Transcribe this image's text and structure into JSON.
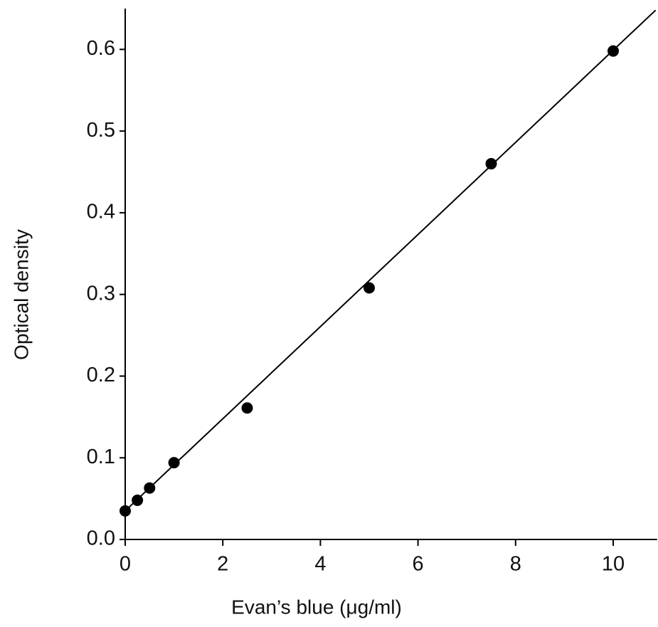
{
  "chart_data": {
    "type": "scatter",
    "x_label": "Evan’s blue (μg/ml)",
    "y_label": "Optical density",
    "x": [
      0,
      0.25,
      0.5,
      1,
      2.5,
      5,
      7.5,
      10
    ],
    "values": [
      0.035,
      0.048,
      0.063,
      0.094,
      0.161,
      0.308,
      0.46,
      0.598
    ],
    "color": "#000000",
    "fit_line": {
      "x": [
        0,
        10.87
      ],
      "values": [
        0.035,
        0.648
      ]
    },
    "xlim": [
      0,
      10.9
    ],
    "ylim": [
      0,
      0.65
    ],
    "xticks": [
      0,
      2,
      4,
      6,
      8,
      10
    ],
    "yticks": [
      {
        "value": 0,
        "label": "0.0"
      },
      0.1,
      0.2,
      0.3,
      0.4,
      0.5,
      0.6
    ]
  }
}
